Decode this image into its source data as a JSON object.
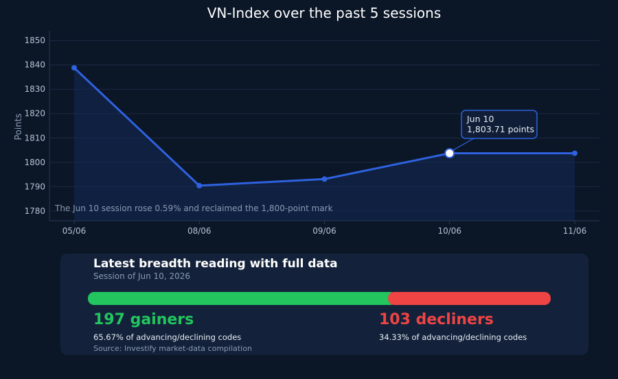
{
  "chart_data": {
    "type": "line",
    "title": "VN-Index over the past 5 sessions",
    "xlabel": "",
    "ylabel": "Points",
    "categories": [
      "05/06",
      "08/06",
      "09/06",
      "10/06",
      "11/06"
    ],
    "series": [
      {
        "values": [
          1838.8,
          1790.4,
          1793.1,
          1803.71,
          1803.71
        ]
      }
    ],
    "ylim": [
      1776,
      1854
    ],
    "yticks": [
      1780,
      1790,
      1800,
      1810,
      1820,
      1830,
      1840,
      1850
    ],
    "grid": true,
    "annotation": "The Jun 10 session rose 0.59% and reclaimed the 1,800-point mark",
    "callout": {
      "index": 3,
      "line1": "Jun 10",
      "line2": "1,803.71 points"
    },
    "colors": {
      "line": "#2f62e0",
      "fill": "#142a55",
      "grid": "#1c2b44"
    }
  },
  "breadth": {
    "title": "Latest breadth reading with full data",
    "subtitle": "Session of Jun 10, 2026",
    "gainers_label": "197 gainers",
    "gainers_pct_label": "65.67% of advancing/declining codes",
    "gainers_share": 0.6567,
    "decliners_label": "103 decliners",
    "decliners_pct_label": "34.33% of advancing/declining codes",
    "decliners_share": 0.3433,
    "source": "Source: Investify market-data compilation",
    "colors": {
      "gainers": "#22c55e",
      "decliners": "#ef4444"
    }
  }
}
